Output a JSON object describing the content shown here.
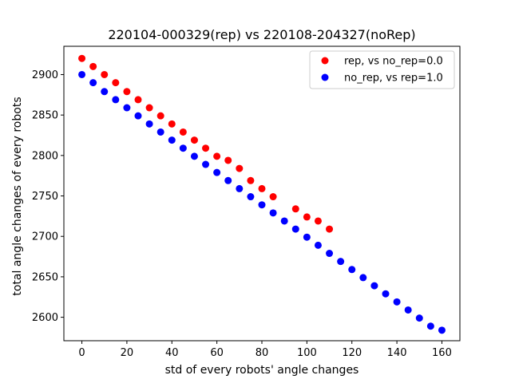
{
  "chart_data": {
    "type": "scatter",
    "title": "220104-000329(rep) vs 220108-204327(noRep)",
    "xlabel": "std of every robots' angle changes",
    "ylabel": "total angle changes of every robots",
    "xlim": [
      -8,
      168
    ],
    "ylim": [
      2571,
      2935
    ],
    "xticks": [
      0,
      20,
      40,
      60,
      80,
      100,
      120,
      140,
      160
    ],
    "yticks": [
      2600,
      2650,
      2700,
      2750,
      2800,
      2850,
      2900
    ],
    "legend_position": "upper-right",
    "grid": false,
    "series": [
      {
        "name": "rep, vs no_rep=0.0",
        "color": "#ff0000",
        "x": [
          0,
          5,
          10,
          15,
          20,
          25,
          30,
          35,
          40,
          45,
          50,
          55,
          60,
          65,
          70,
          75,
          80,
          85,
          95,
          100,
          105,
          110
        ],
        "y": [
          2920,
          2910,
          2900,
          2890,
          2879,
          2869,
          2859,
          2849,
          2839,
          2829,
          2819,
          2809,
          2799,
          2794,
          2784,
          2769,
          2759,
          2749,
          2734,
          2724,
          2719,
          2709
        ]
      },
      {
        "name": "no_rep, vs rep=1.0",
        "color": "#0000ff",
        "x": [
          0,
          5,
          10,
          15,
          20,
          25,
          30,
          35,
          40,
          45,
          50,
          55,
          60,
          65,
          70,
          75,
          80,
          85,
          90,
          95,
          100,
          105,
          110,
          115,
          120,
          125,
          130,
          135,
          140,
          145,
          150,
          155,
          160
        ],
        "y": [
          2900,
          2890,
          2879,
          2869,
          2859,
          2849,
          2839,
          2829,
          2819,
          2809,
          2799,
          2789,
          2779,
          2769,
          2759,
          2749,
          2739,
          2729,
          2719,
          2709,
          2699,
          2689,
          2679,
          2669,
          2659,
          2649,
          2639,
          2629,
          2619,
          2609,
          2599,
          2589,
          2584
        ]
      }
    ]
  }
}
